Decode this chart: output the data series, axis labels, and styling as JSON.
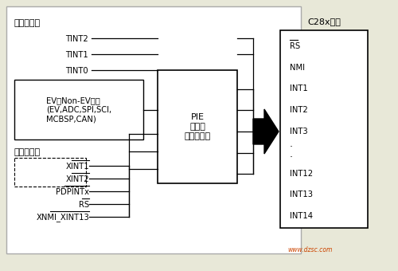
{
  "bg_color": "#e8e8d8",
  "border_color": "#888888",
  "internal_label": "内部中断源",
  "external_label": "外部中断源",
  "core_label": "C28x内核",
  "pie_label": "PIE\n（外设\n中断扩展）",
  "ev_box_text": "EV和Non-EV外设\n(EV,ADC,SPI,SCI,\nMCBSP,CAN)",
  "internal_signals": [
    "TINT2",
    "TINT1",
    "TINT0"
  ],
  "external_signals": [
    "XINT1",
    "XINT2",
    "PDPINTx",
    "RS",
    "XNMI_XINT13"
  ],
  "core_signals": [
    "RS",
    "NMI",
    "INT1",
    "INT2",
    "INT3",
    "…",
    "INT12",
    "INT13",
    "INT14"
  ],
  "core_overline": [
    "RS"
  ],
  "ext_overline": [
    "XINT1",
    "XINT2",
    "PDPINTx",
    "RS",
    "XNMI_XINT13"
  ],
  "watermark": "www.dzsc.com"
}
